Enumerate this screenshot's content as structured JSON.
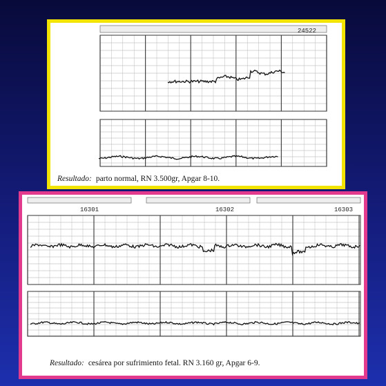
{
  "top": {
    "sheet_id": "24522",
    "caption": {
      "label": "Resultado:",
      "text": "parto normal, RN 3.500gr, Apgar 8-10."
    }
  },
  "bottom": {
    "sheet_ids": [
      "16301",
      "16302",
      "16303"
    ],
    "caption": {
      "label": "Resultado:",
      "text": "cesárea por sufrimiento fetal. RN 3.160 gr, Apgar 6-9."
    }
  }
}
